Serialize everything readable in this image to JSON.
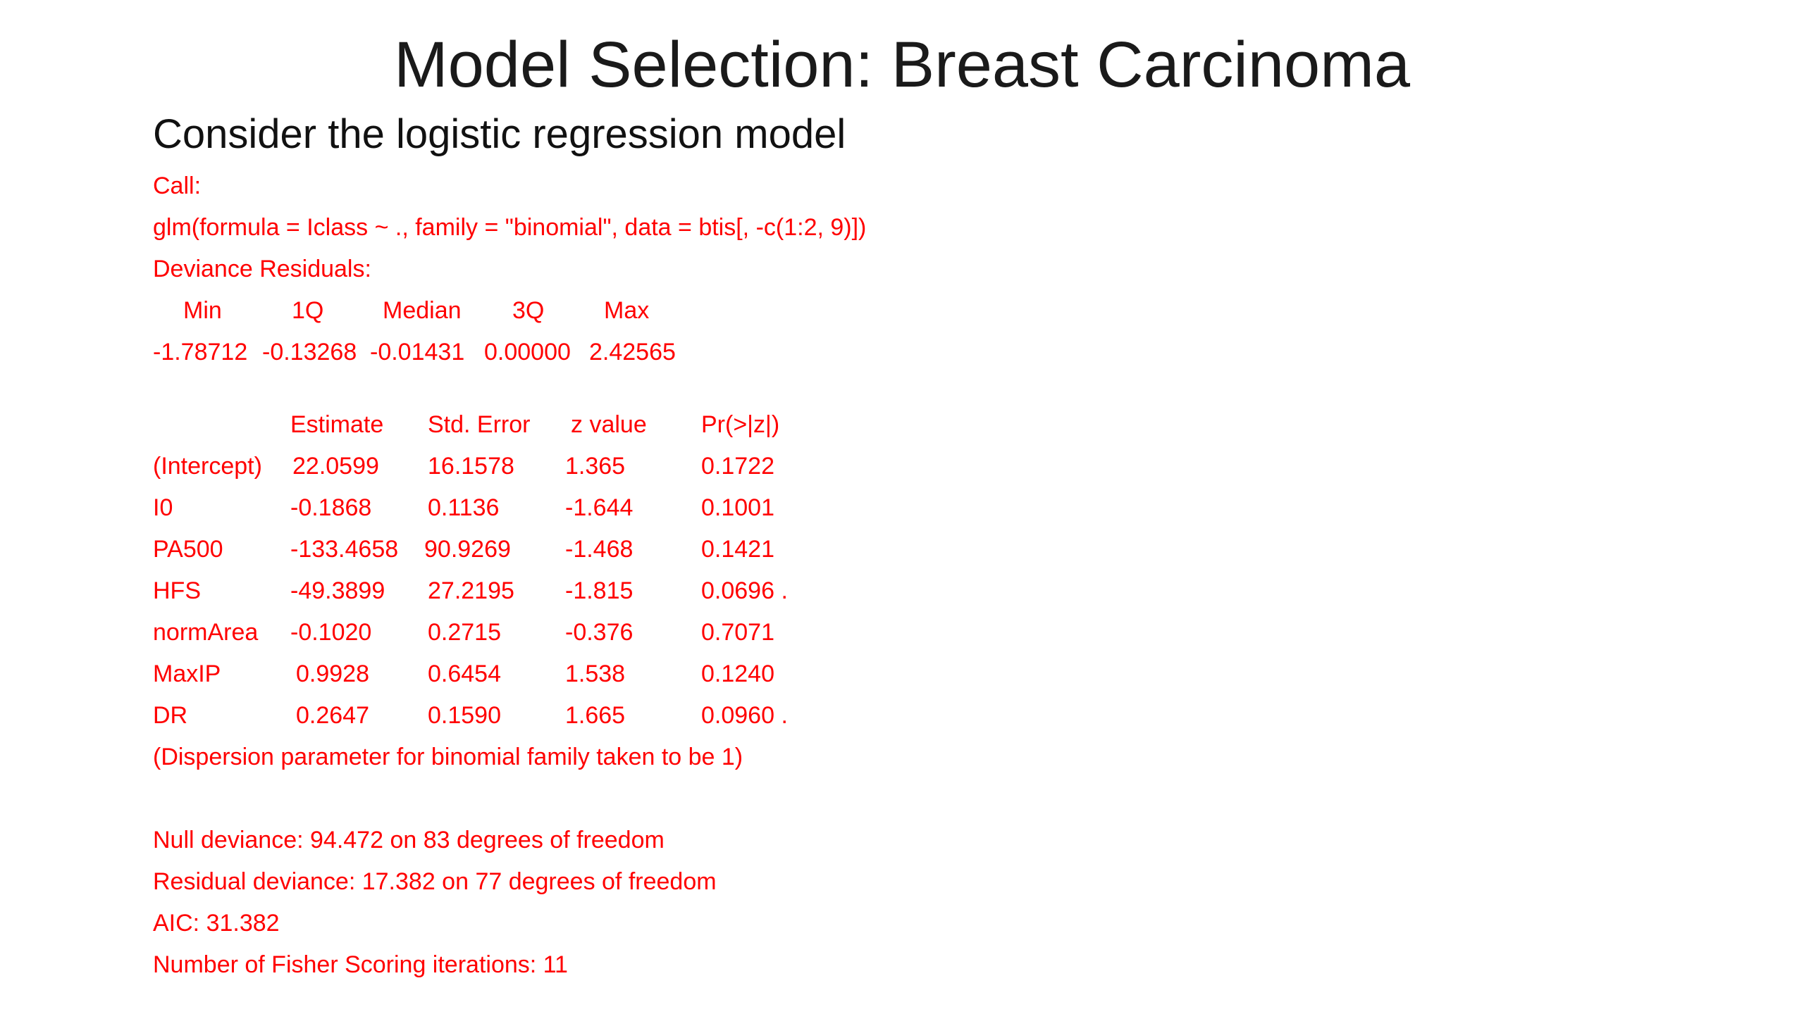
{
  "slide": {
    "title": "Model Selection: Breast Carcinoma",
    "subtitle": "Consider the logistic regression model"
  },
  "output": {
    "call_label": "Call:",
    "call_formula": "glm(formula = Iclass ~ ., family = \"binomial\", data = btis[, -c(1:2, 9)])",
    "deviance_label": "Deviance Residuals:",
    "residual_headers": [
      "Min",
      "1Q",
      "Median",
      "3Q",
      "Max"
    ],
    "residual_values": [
      "-1.78712",
      "-0.13268",
      "-0.01431",
      "0.00000",
      "2.42565"
    ],
    "coef_headers": [
      "Estimate",
      "Std. Error",
      "z value",
      "Pr(>|z|)"
    ],
    "coef_rows": [
      {
        "name": "(Intercept)",
        "estimate": "22.0599",
        "std_error": "16.1578",
        "z_value": "1.365",
        "p_value": "0.1722"
      },
      {
        "name": "I0",
        "estimate": "-0.1868",
        "std_error": "0.1136",
        "z_value": "-1.644",
        "p_value": "0.1001"
      },
      {
        "name": "PA500",
        "estimate": "-133.4658",
        "std_error": "90.9269",
        "z_value": "-1.468",
        "p_value": "0.1421"
      },
      {
        "name": "HFS",
        "estimate": "-49.3899",
        "std_error": "27.2195",
        "z_value": "-1.815",
        "p_value": "0.0696 ."
      },
      {
        "name": "normArea",
        "estimate": "-0.1020",
        "std_error": "0.2715",
        "z_value": "-0.376",
        "p_value": "0.7071"
      },
      {
        "name": "MaxIP",
        "estimate": "0.9928",
        "std_error": "0.6454",
        "z_value": "1.538",
        "p_value": "0.1240"
      },
      {
        "name": "DR",
        "estimate": "0.2647",
        "std_error": "0.1590",
        "z_value": "1.665",
        "p_value": "0.0960 ."
      }
    ],
    "dispersion": "(Dispersion parameter for binomial family taken to be 1)",
    "null_deviance": "Null deviance: 94.472  on 83  degrees of freedom",
    "residual_deviance": "Residual deviance: 17.382  on 77  degrees of freedom",
    "aic": "AIC: 31.382",
    "fisher": "Number of Fisher Scoring iterations: 11"
  }
}
